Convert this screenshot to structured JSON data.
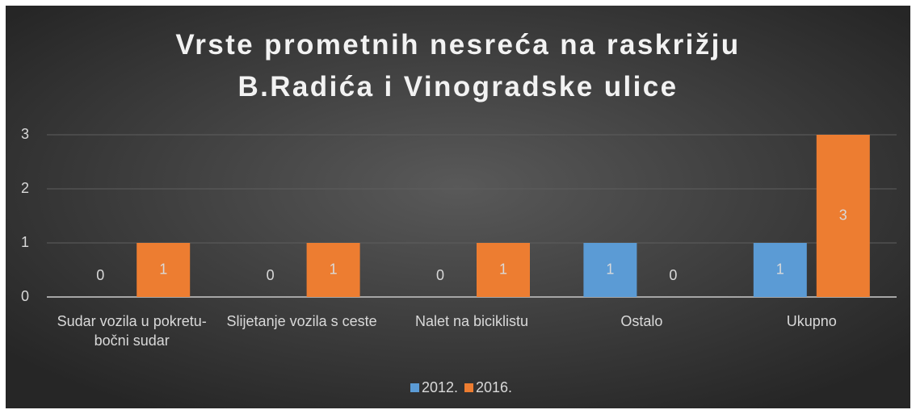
{
  "chart_data": {
    "type": "bar",
    "title": "Vrste prometnih nesreća na raskrižju B.Radića i Vinogradske ulice",
    "categories": [
      "Sudar vozila u pokretu-bočni sudar",
      "Slijetanje vozila s ceste",
      "Nalet na biciklistu",
      "Ostalo",
      "Ukupno"
    ],
    "series": [
      {
        "name": "2012.",
        "color": "#5b9bd5",
        "values": [
          0,
          0,
          0,
          1,
          1
        ]
      },
      {
        "name": "2016.",
        "color": "#ed7d31",
        "values": [
          1,
          1,
          1,
          0,
          3
        ]
      }
    ],
    "ylim": [
      0,
      3
    ],
    "yticks": [
      0,
      1,
      2,
      3
    ],
    "grid": true,
    "legend": "bottom"
  }
}
